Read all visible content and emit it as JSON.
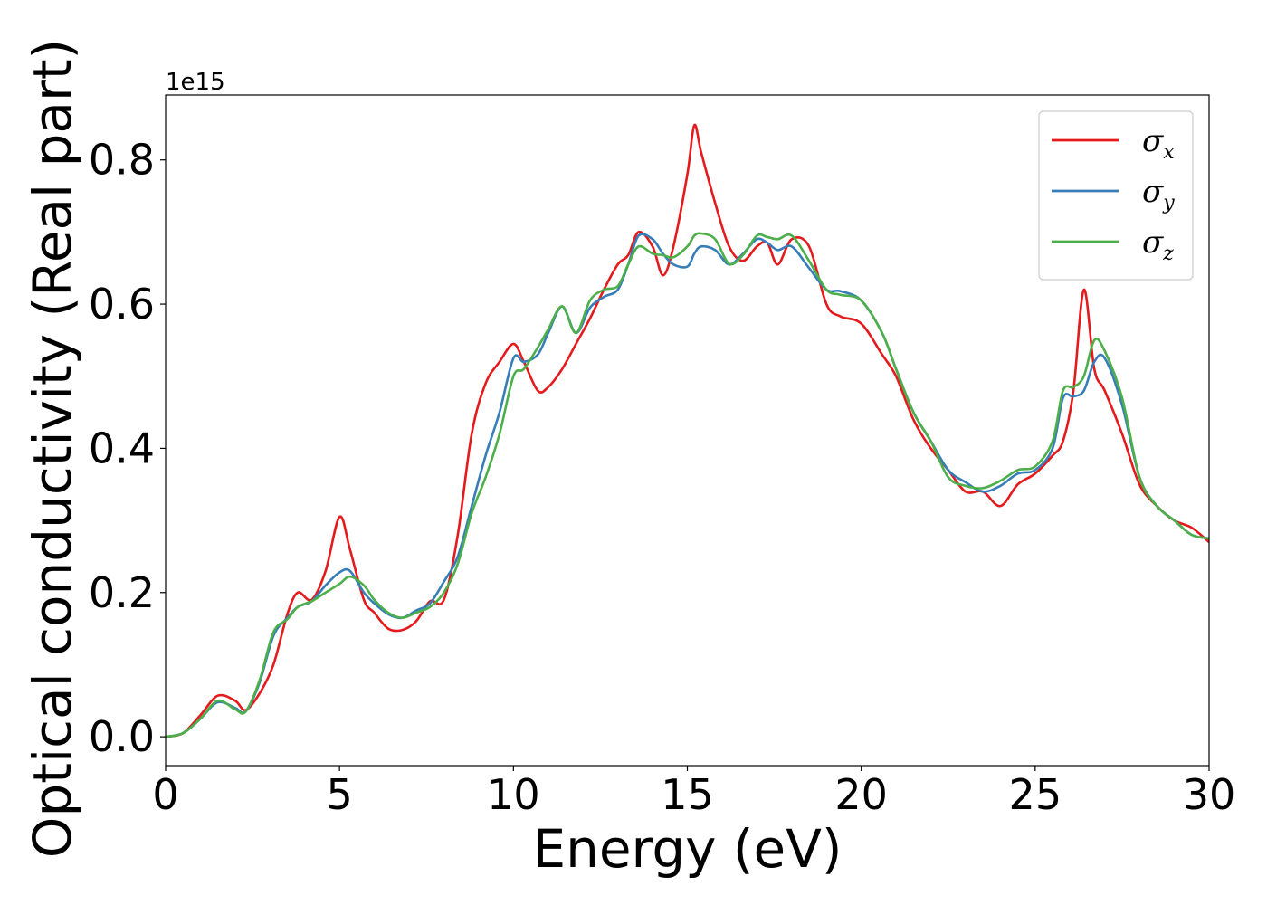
{
  "chart_data": {
    "type": "line",
    "xlabel": "Energy (eV)",
    "ylabel": "Optical conductivity (Real part)",
    "y_offset_text": "1e15",
    "xlim": [
      0,
      30
    ],
    "ylim": [
      -0.04,
      0.89
    ],
    "xticks": [
      0,
      5,
      10,
      15,
      20,
      25,
      30
    ],
    "xtick_labels": [
      "0",
      "5",
      "10",
      "15",
      "20",
      "25",
      "30"
    ],
    "yticks": [
      0.0,
      0.2,
      0.4,
      0.6,
      0.8
    ],
    "ytick_labels": [
      "0.0",
      "0.2",
      "0.4",
      "0.6",
      "0.8"
    ],
    "grid": false,
    "legend_position": "top-right",
    "series": [
      {
        "name": "σx",
        "symbol": "σ",
        "subscript": "x",
        "color": "#e41a1c",
        "x": [
          0,
          0.5,
          1.0,
          1.5,
          2.0,
          2.3,
          2.7,
          3.1,
          3.5,
          3.8,
          4.2,
          4.6,
          5.0,
          5.3,
          5.7,
          6.0,
          6.4,
          6.8,
          7.2,
          7.6,
          8.0,
          8.4,
          8.8,
          9.2,
          9.6,
          10.0,
          10.3,
          10.7,
          11.0,
          11.4,
          11.8,
          12.2,
          12.6,
          13.0,
          13.3,
          13.6,
          14.0,
          14.3,
          14.6,
          15.0,
          15.2,
          15.4,
          15.8,
          16.2,
          16.6,
          17.0,
          17.3,
          17.6,
          18.0,
          18.5,
          19.0,
          19.4,
          20.0,
          20.6,
          21.0,
          21.5,
          22.0,
          22.5,
          23.0,
          23.5,
          24.0,
          24.5,
          25.0,
          25.5,
          25.8,
          26.1,
          26.4,
          26.7,
          27.0,
          27.5,
          28.0,
          28.5,
          29.0,
          29.5,
          30.0
        ],
        "values": [
          0.0,
          0.005,
          0.03,
          0.057,
          0.05,
          0.037,
          0.06,
          0.1,
          0.17,
          0.2,
          0.19,
          0.23,
          0.305,
          0.26,
          0.19,
          0.172,
          0.15,
          0.148,
          0.16,
          0.188,
          0.19,
          0.28,
          0.42,
          0.49,
          0.52,
          0.545,
          0.52,
          0.48,
          0.485,
          0.51,
          0.545,
          0.58,
          0.62,
          0.655,
          0.668,
          0.7,
          0.68,
          0.64,
          0.68,
          0.78,
          0.848,
          0.81,
          0.74,
          0.68,
          0.66,
          0.68,
          0.685,
          0.655,
          0.69,
          0.68,
          0.6,
          0.583,
          0.573,
          0.53,
          0.5,
          0.44,
          0.4,
          0.37,
          0.34,
          0.34,
          0.32,
          0.35,
          0.365,
          0.39,
          0.41,
          0.48,
          0.62,
          0.51,
          0.48,
          0.42,
          0.35,
          0.32,
          0.3,
          0.29,
          0.27
        ]
      },
      {
        "name": "σy",
        "symbol": "σ",
        "subscript": "y",
        "color": "#377eb8",
        "x": [
          0,
          0.5,
          1.0,
          1.5,
          2.0,
          2.3,
          2.7,
          3.1,
          3.5,
          3.8,
          4.2,
          4.6,
          5.0,
          5.3,
          5.7,
          6.0,
          6.4,
          6.8,
          7.2,
          7.6,
          8.0,
          8.4,
          8.8,
          9.2,
          9.6,
          10.0,
          10.3,
          10.7,
          11.0,
          11.4,
          11.8,
          12.2,
          12.6,
          13.0,
          13.3,
          13.6,
          14.0,
          14.3,
          14.6,
          15.0,
          15.2,
          15.4,
          15.8,
          16.2,
          16.6,
          17.0,
          17.3,
          17.6,
          18.0,
          18.5,
          19.0,
          19.4,
          20.0,
          20.6,
          21.0,
          21.5,
          22.0,
          22.5,
          23.0,
          23.5,
          24.0,
          24.5,
          25.0,
          25.5,
          25.8,
          26.1,
          26.4,
          26.7,
          27.0,
          27.5,
          28.0,
          28.5,
          29.0,
          29.5,
          30.0
        ],
        "values": [
          0.0,
          0.005,
          0.025,
          0.048,
          0.04,
          0.035,
          0.075,
          0.14,
          0.165,
          0.18,
          0.188,
          0.21,
          0.228,
          0.23,
          0.2,
          0.185,
          0.17,
          0.165,
          0.175,
          0.185,
          0.215,
          0.25,
          0.32,
          0.39,
          0.45,
          0.525,
          0.52,
          0.53,
          0.56,
          0.597,
          0.56,
          0.595,
          0.61,
          0.62,
          0.655,
          0.695,
          0.69,
          0.67,
          0.655,
          0.652,
          0.67,
          0.68,
          0.675,
          0.655,
          0.67,
          0.69,
          0.685,
          0.675,
          0.68,
          0.65,
          0.62,
          0.618,
          0.605,
          0.56,
          0.51,
          0.45,
          0.41,
          0.37,
          0.353,
          0.34,
          0.348,
          0.365,
          0.37,
          0.4,
          0.47,
          0.472,
          0.48,
          0.52,
          0.525,
          0.46,
          0.36,
          0.32,
          0.3,
          0.28,
          0.275
        ]
      },
      {
        "name": "σz",
        "symbol": "σ",
        "subscript": "z",
        "color": "#4daf4a",
        "x": [
          0,
          0.5,
          1.0,
          1.5,
          2.0,
          2.3,
          2.7,
          3.1,
          3.5,
          3.8,
          4.2,
          4.6,
          5.0,
          5.3,
          5.7,
          6.0,
          6.4,
          6.8,
          7.2,
          7.6,
          8.0,
          8.4,
          8.8,
          9.2,
          9.6,
          10.0,
          10.3,
          10.7,
          11.0,
          11.4,
          11.8,
          12.2,
          12.6,
          13.0,
          13.3,
          13.6,
          14.0,
          14.3,
          14.6,
          15.0,
          15.2,
          15.4,
          15.8,
          16.2,
          16.6,
          17.0,
          17.3,
          17.6,
          18.0,
          18.5,
          19.0,
          19.4,
          20.0,
          20.6,
          21.0,
          21.5,
          22.0,
          22.5,
          23.0,
          23.5,
          24.0,
          24.5,
          25.0,
          25.5,
          25.8,
          26.1,
          26.4,
          26.7,
          27.0,
          27.5,
          28.0,
          28.5,
          29.0,
          29.5,
          30.0
        ],
        "values": [
          0.0,
          0.005,
          0.025,
          0.05,
          0.038,
          0.035,
          0.078,
          0.145,
          0.163,
          0.18,
          0.188,
          0.2,
          0.212,
          0.222,
          0.21,
          0.19,
          0.172,
          0.165,
          0.172,
          0.18,
          0.2,
          0.24,
          0.31,
          0.36,
          0.42,
          0.5,
          0.51,
          0.54,
          0.565,
          0.597,
          0.56,
          0.605,
          0.62,
          0.625,
          0.655,
          0.68,
          0.67,
          0.668,
          0.665,
          0.68,
          0.695,
          0.698,
          0.69,
          0.656,
          0.668,
          0.695,
          0.693,
          0.69,
          0.695,
          0.66,
          0.62,
          0.613,
          0.605,
          0.56,
          0.51,
          0.45,
          0.41,
          0.36,
          0.348,
          0.345,
          0.355,
          0.37,
          0.375,
          0.41,
          0.48,
          0.485,
          0.5,
          0.55,
          0.535,
          0.47,
          0.36,
          0.32,
          0.3,
          0.28,
          0.275
        ]
      }
    ]
  }
}
